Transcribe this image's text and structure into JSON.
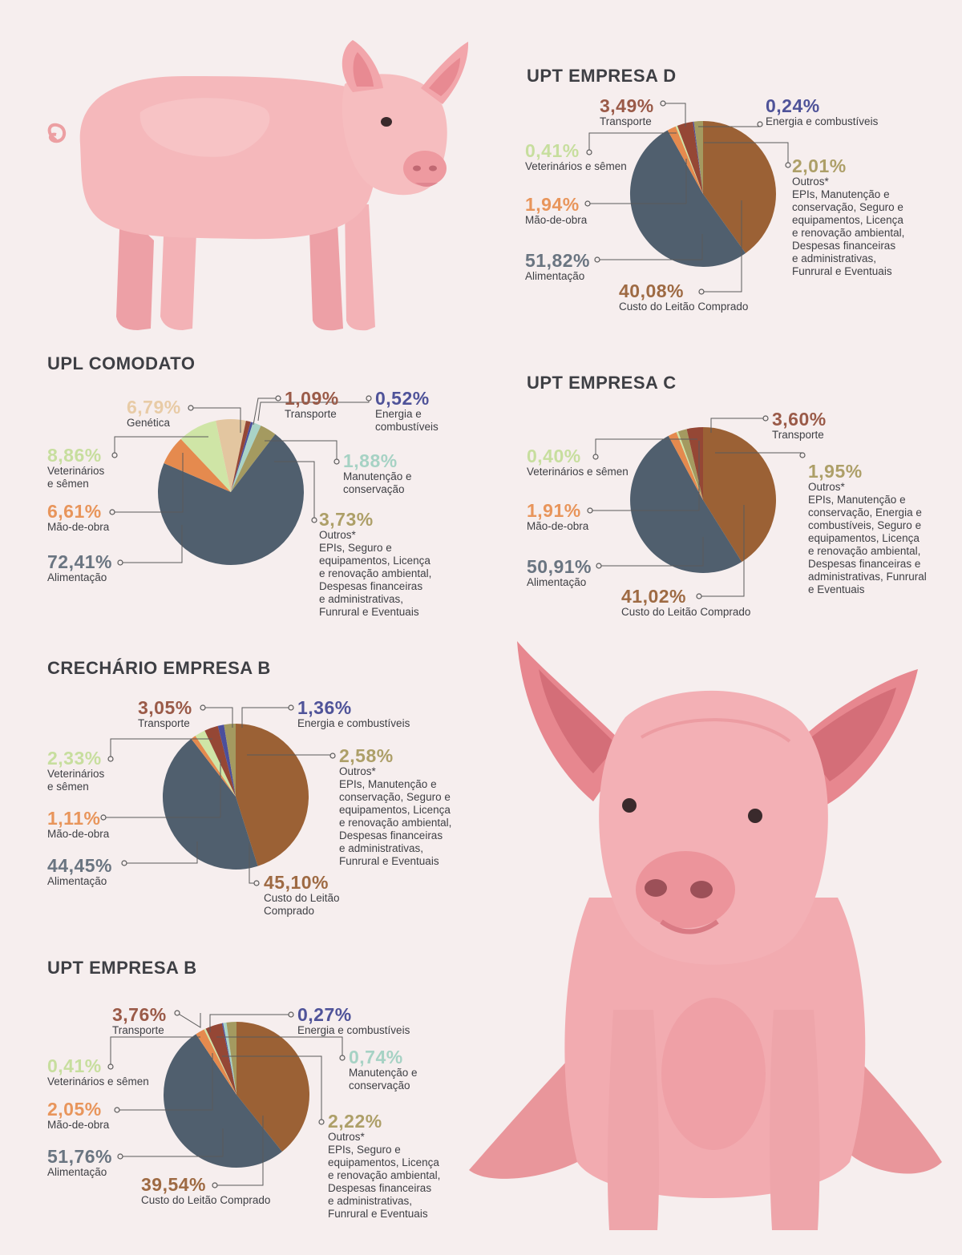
{
  "colors": {
    "alimentacao": "#505f6e",
    "custo_leitao": "#9b6135",
    "mao_de_obra": "#e58a4e",
    "veterinarios": "#cfe5a6",
    "transporte": "#954735",
    "energia": "#4b4f9c",
    "outros": "#a49a60",
    "genetica": "#e3c6a0",
    "manutencao": "#a9d3c6",
    "leader": "#5a5a5a",
    "title": "#3e3f44"
  },
  "chart_data": [
    {
      "id": "upt-empresa-d",
      "type": "pie",
      "title": "UPT EMPRESA D",
      "slices": [
        {
          "key": "custo_leitao",
          "value": 40.08,
          "pct_label": "40,08%",
          "name": "Custo do Leitão Comprado",
          "pct_color": "#9e6a43"
        },
        {
          "key": "alimentacao",
          "value": 51.82,
          "pct_label": "51,82%",
          "name": "Alimentação",
          "pct_color": "#6a7581"
        },
        {
          "key": "mao_de_obra",
          "value": 1.94,
          "pct_label": "1,94%",
          "name": "Mão-de-obra",
          "pct_color": "#e8955b"
        },
        {
          "key": "veterinarios",
          "value": 0.41,
          "pct_label": "0,41%",
          "name": "Veterinários e sêmen",
          "pct_color": "#c7de9e"
        },
        {
          "key": "transporte",
          "value": 3.49,
          "pct_label": "3,49%",
          "name": "Transporte",
          "pct_color": "#9a5a48"
        },
        {
          "key": "energia",
          "value": 0.24,
          "pct_label": "0,24%",
          "name": "Energia e combustíveis",
          "pct_color": "#4f5399"
        },
        {
          "key": "outros",
          "value": 2.01,
          "pct_label": "2,01%",
          "name": "Outros*",
          "pct_color": "#ad9f68",
          "detail": "EPIs, Manutenção e\nconservação, Seguro e\nequipamentos, Licença\ne renovação ambiental,\nDespesas financeiras\ne administrativas,\nFunrural e Eventuais"
        }
      ]
    },
    {
      "id": "upl-comodato",
      "type": "pie",
      "title": "UPL COMODATO",
      "slices": [
        {
          "key": "genetica",
          "value": 6.79,
          "pct_label": "6,79%",
          "name": "Genética",
          "pct_color": "#e8cba6"
        },
        {
          "key": "transporte",
          "value": 1.09,
          "pct_label": "1,09%",
          "name": "Transporte",
          "pct_color": "#9a5a48"
        },
        {
          "key": "energia",
          "value": 0.52,
          "pct_label": "0,52%",
          "name": "Energia e\ncombustíveis",
          "pct_color": "#4f5399"
        },
        {
          "key": "manutencao",
          "value": 1.88,
          "pct_label": "1,88%",
          "name": "Manutenção e\nconservação",
          "pct_color": "#a6d2c4"
        },
        {
          "key": "outros",
          "value": 3.73,
          "pct_label": "3,73%",
          "name": "Outros*",
          "pct_color": "#ad9f68",
          "detail": "EPIs, Seguro e\nequipamentos, Licença\ne renovação ambiental,\nDespesas financeiras\ne administrativas,\nFunrural e Eventuais"
        },
        {
          "key": "alimentacao",
          "value": 72.41,
          "pct_label": "72,41%",
          "name": "Alimentação",
          "pct_color": "#6a7581"
        },
        {
          "key": "mao_de_obra",
          "value": 6.61,
          "pct_label": "6,61%",
          "name": "Mão-de-obra",
          "pct_color": "#e8955b"
        },
        {
          "key": "veterinarios",
          "value": 8.86,
          "pct_label": "8,86%",
          "name": "Veterinários\ne sêmen",
          "pct_color": "#c7de9e"
        }
      ]
    },
    {
      "id": "upt-empresa-c",
      "type": "pie",
      "title": "UPT EMPRESA C",
      "slices": [
        {
          "key": "custo_leitao",
          "value": 41.02,
          "pct_label": "41,02%",
          "name": "Custo do Leitão Comprado",
          "pct_color": "#9e6a43"
        },
        {
          "key": "alimentacao",
          "value": 50.91,
          "pct_label": "50,91%",
          "name": "Alimentação",
          "pct_color": "#6a7581"
        },
        {
          "key": "mao_de_obra",
          "value": 1.91,
          "pct_label": "1,91%",
          "name": "Mão-de-obra",
          "pct_color": "#e8955b"
        },
        {
          "key": "veterinarios",
          "value": 0.4,
          "pct_label": "0,40%",
          "name": "Veterinários e sêmen",
          "pct_color": "#c7de9e"
        },
        {
          "key": "outros",
          "value": 1.95,
          "pct_label": "1,95%",
          "name": "Outros*",
          "pct_color": "#ad9f68",
          "detail": "EPIs, Manutenção e\nconservação, Energia e\ncombustíveis,  Seguro e\nequipamentos, Licença\ne renovação ambiental,\nDespesas financeiras e\nadministrativas, Funrural\ne Eventuais"
        },
        {
          "key": "transporte",
          "value": 3.6,
          "pct_label": "3,60%",
          "name": "Transporte",
          "pct_color": "#9a5a48"
        }
      ]
    },
    {
      "id": "crechario-empresa-b",
      "type": "pie",
      "title": "CRECHÁRIO EMPRESA B",
      "slices": [
        {
          "key": "custo_leitao",
          "value": 45.1,
          "pct_label": "45,10%",
          "name": "Custo do Leitão\nComprado",
          "pct_color": "#9e6a43"
        },
        {
          "key": "alimentacao",
          "value": 44.45,
          "pct_label": "44,45%",
          "name": "Alimentação",
          "pct_color": "#6a7581"
        },
        {
          "key": "mao_de_obra",
          "value": 1.11,
          "pct_label": "1,11%",
          "name": "Mão-de-obra",
          "pct_color": "#e8955b"
        },
        {
          "key": "veterinarios",
          "value": 2.33,
          "pct_label": "2,33%",
          "name": "Veterinários\ne sêmen",
          "pct_color": "#c7de9e"
        },
        {
          "key": "transporte",
          "value": 3.05,
          "pct_label": "3,05%",
          "name": "Transporte",
          "pct_color": "#9a5a48"
        },
        {
          "key": "energia",
          "value": 1.36,
          "pct_label": "1,36%",
          "name": "Energia e combustíveis",
          "pct_color": "#4f5399"
        },
        {
          "key": "outros",
          "value": 2.58,
          "pct_label": "2,58%",
          "name": "Outros*",
          "pct_color": "#ad9f68",
          "detail": "EPIs, Manutenção e\nconservação, Seguro e\nequipamentos, Licença\ne renovação ambiental,\nDespesas financeiras\ne administrativas,\nFunrural e Eventuais"
        }
      ]
    },
    {
      "id": "upt-empresa-b",
      "type": "pie",
      "title": "UPT EMPRESA B",
      "slices": [
        {
          "key": "custo_leitao",
          "value": 39.54,
          "pct_label": "39,54%",
          "name": "Custo do Leitão Comprado",
          "pct_color": "#9e6a43"
        },
        {
          "key": "alimentacao",
          "value": 51.76,
          "pct_label": "51,76%",
          "name": "Alimentação",
          "pct_color": "#6a7581"
        },
        {
          "key": "mao_de_obra",
          "value": 2.05,
          "pct_label": "2,05%",
          "name": "Mão-de-obra",
          "pct_color": "#e8955b"
        },
        {
          "key": "veterinarios",
          "value": 0.41,
          "pct_label": "0,41%",
          "name": "Veterinários e sêmen",
          "pct_color": "#c7de9e"
        },
        {
          "key": "transporte",
          "value": 3.76,
          "pct_label": "3,76%",
          "name": "Transporte",
          "pct_color": "#9a5a48"
        },
        {
          "key": "energia",
          "value": 0.27,
          "pct_label": "0,27%",
          "name": "Energia e combustíveis",
          "pct_color": "#4f5399"
        },
        {
          "key": "manutencao",
          "value": 0.74,
          "pct_label": "0,74%",
          "name": "Manutenção e\nconservação",
          "pct_color": "#a6d2c4"
        },
        {
          "key": "outros",
          "value": 2.22,
          "pct_label": "2,22%",
          "name": "Outros*",
          "pct_color": "#ad9f68",
          "detail": "EPIs, Seguro e\nequipamentos, Licença\ne renovação ambiental,\nDespesas financeiras\ne administrativas,\nFunrural e Eventuais"
        }
      ]
    }
  ]
}
